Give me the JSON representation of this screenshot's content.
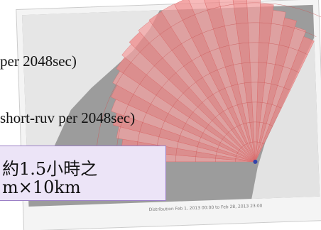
{
  "slide": {
    "lines": [
      "per 2048sec)",
      "short-ruv per 2048sec)"
    ],
    "callout": [
      "約1.5小時之",
      "m×10km"
    ],
    "map_caption": "Distribution Feb 1, 2013 00:00 to Feb 28, 2013 23:00"
  }
}
